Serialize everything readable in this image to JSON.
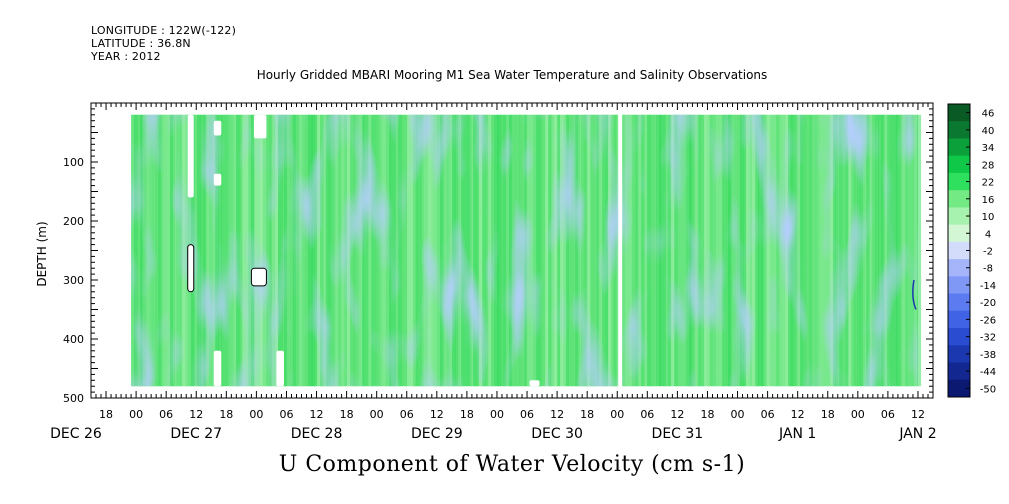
{
  "header": {
    "longitude": "LONGITUDE : 122W(-122)",
    "latitude": "LATITUDE : 36.8N",
    "year": "YEAR : 2012"
  },
  "chart_data": {
    "type": "heatmap",
    "title": "Hourly Gridded MBARI Mooring M1 Sea Water Temperature and Salinity Observations",
    "xlabel": "U Component of Water Velocity (cm s-1)",
    "ylabel": "DEPTH (m)",
    "ylim": [
      500,
      0
    ],
    "y_axis_inverted": true,
    "y_ticks": [
      100,
      200,
      300,
      400,
      500
    ],
    "y_tick_labels": [
      "100",
      "200",
      "300",
      "400",
      "500"
    ],
    "x_range_hours": [
      -9,
      159
    ],
    "x_ticks_hours": [
      -6,
      0,
      6,
      12,
      18,
      24,
      30,
      36,
      42,
      48,
      54,
      60,
      66,
      72,
      78,
      84,
      90,
      96,
      102,
      108,
      114,
      120,
      126,
      132,
      138,
      144,
      150,
      156
    ],
    "x_tick_labels": [
      "18",
      "00",
      "06",
      "12",
      "18",
      "00",
      "06",
      "12",
      "18",
      "00",
      "06",
      "12",
      "18",
      "00",
      "06",
      "12",
      "18",
      "00",
      "06",
      "12",
      "18",
      "00",
      "06",
      "12",
      "18",
      "00",
      "06",
      "12"
    ],
    "day_labels": [
      {
        "text": "DEC 26",
        "hour": -12
      },
      {
        "text": "DEC 27",
        "hour": 12
      },
      {
        "text": "DEC 28",
        "hour": 36
      },
      {
        "text": "DEC 29",
        "hour": 60
      },
      {
        "text": "DEC 30",
        "hour": 84
      },
      {
        "text": "DEC 31",
        "hour": 108
      },
      {
        "text": "JAN  1",
        "hour": 132
      },
      {
        "text": "JAN  2",
        "hour": 156
      }
    ],
    "data_extent_hours": [
      -1,
      156
    ],
    "data_extent_depth": [
      20,
      480
    ],
    "grid": false,
    "colorbar": {
      "levels": [
        -50,
        -44,
        -38,
        -32,
        -26,
        -20,
        -14,
        -8,
        -2,
        4,
        10,
        16,
        22,
        28,
        34,
        40,
        46
      ],
      "labels": [
        "46",
        "40",
        "34",
        "28",
        "22",
        "16",
        "10",
        "4",
        "-2",
        "-8",
        "-14",
        "-20",
        "-26",
        "-32",
        "-38",
        "-44",
        "-50"
      ],
      "colors": [
        "#0b1a70",
        "#122890",
        "#1b38b0",
        "#2a4cd0",
        "#4062e4",
        "#5c7bf0",
        "#7f98f6",
        "#a6b4fa",
        "#d4dcfc",
        "#d3f7d5",
        "#a8f2b0",
        "#74ea85",
        "#2ee05e",
        "#10c848",
        "#0ca03a",
        "#0a7830",
        "#0a5a26"
      ],
      "placement": "right"
    }
  }
}
